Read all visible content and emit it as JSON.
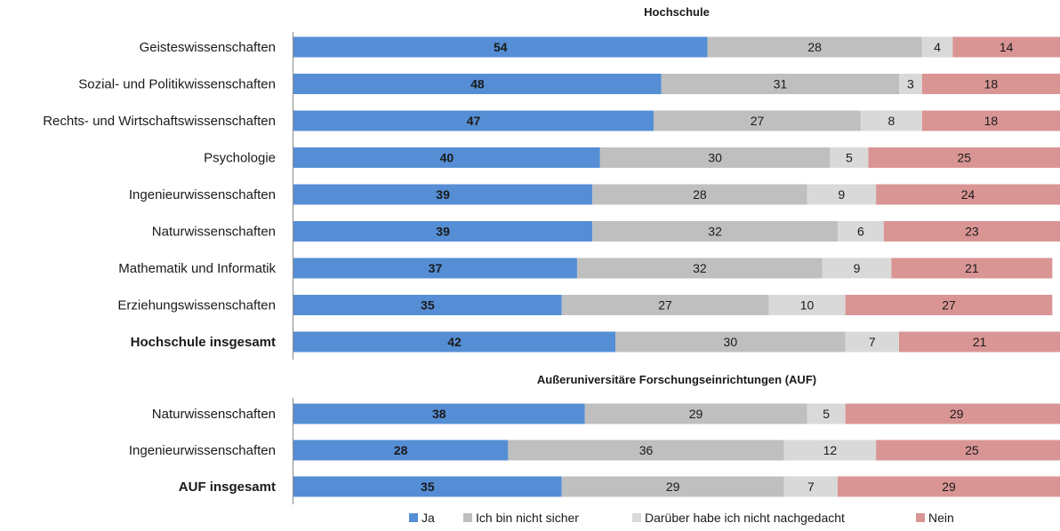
{
  "chart_data": [
    {
      "type": "bar",
      "orientation": "horizontal",
      "stacked": true,
      "title": "Hochschule",
      "categories": [
        "Geisteswissenschaften",
        "Sozial- und Politikwissenschaften",
        "Rechts- und Wirtschaftswissenschaften",
        "Psychologie",
        "Ingenieurwissenschaften",
        "Naturwissenschaften",
        "Mathematik und Informatik",
        "Erziehungswissenschaften",
        "Hochschule insgesamt"
      ],
      "bold_categories": [
        "Hochschule insgesamt"
      ],
      "series": [
        {
          "name": "Ja",
          "values": [
            54,
            48,
            47,
            40,
            39,
            39,
            37,
            35,
            42
          ]
        },
        {
          "name": "Ich bin nicht sicher",
          "values": [
            28,
            31,
            27,
            30,
            28,
            32,
            32,
            27,
            30
          ]
        },
        {
          "name": "Darüber habe ich nicht nachgedacht",
          "values": [
            4,
            3,
            8,
            5,
            9,
            6,
            9,
            10,
            7
          ]
        },
        {
          "name": "Nein",
          "values": [
            14,
            18,
            18,
            25,
            24,
            23,
            21,
            27,
            21
          ]
        }
      ],
      "xlim": [
        0,
        100
      ]
    },
    {
      "type": "bar",
      "orientation": "horizontal",
      "stacked": true,
      "title": "Außeruniversitäre Forschungseinrichtungen (AUF)",
      "categories": [
        "Naturwissenschaften",
        "Ingenieurwissenschaften",
        "AUF insgesamt"
      ],
      "bold_categories": [
        "AUF insgesamt"
      ],
      "series": [
        {
          "name": "Ja",
          "values": [
            38,
            28,
            35
          ]
        },
        {
          "name": "Ich bin nicht sicher",
          "values": [
            29,
            36,
            29
          ]
        },
        {
          "name": "Darüber habe ich nicht nachgedacht",
          "values": [
            5,
            12,
            7
          ]
        },
        {
          "name": "Nein",
          "values": [
            29,
            25,
            29
          ]
        }
      ],
      "xlim": [
        0,
        100
      ]
    }
  ],
  "legend": {
    "placement": "bottom",
    "items": [
      {
        "label": "Ja",
        "color": "#558ed5"
      },
      {
        "label": "Ich bin nicht sicher",
        "color": "#bfbfbf"
      },
      {
        "label": "Darüber habe ich nicht nachgedacht",
        "color": "#d9d9d9"
      },
      {
        "label": "Nein",
        "color": "#d99594"
      }
    ]
  },
  "colors": {
    "ja": "#558ed5",
    "unsicher": "#bfbfbf",
    "nicht_nachgedacht": "#d9d9d9",
    "nein": "#d99594",
    "axis": "#8c8c8c"
  }
}
